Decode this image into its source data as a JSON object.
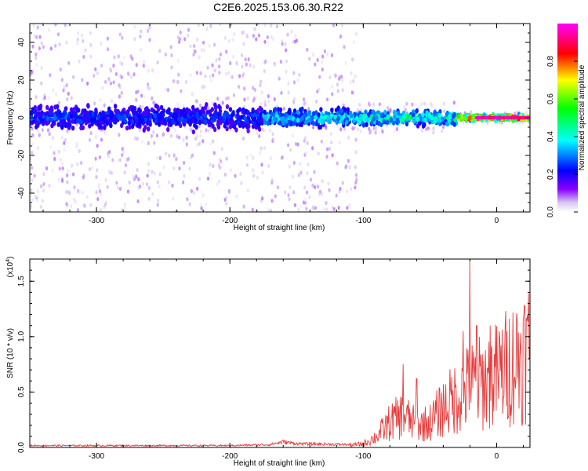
{
  "figure": {
    "title": "C2E6.2025.153.06.30.R22"
  },
  "chart_data": [
    {
      "type": "heatmap",
      "xlabel": "Height of straight line (km)",
      "ylabel": "Frequency (Hz)",
      "xlim": [
        -350,
        25
      ],
      "ylim": [
        -50,
        50
      ],
      "x_ticks": [
        -300,
        -200,
        -100,
        0
      ],
      "y_ticks": [
        -40,
        -20,
        0,
        20,
        40
      ],
      "grid": false,
      "colorbar": {
        "label": "Normalized spectral amplitude",
        "range": [
          0.0,
          1.0
        ],
        "ticks": [
          "0.0",
          "0.2",
          "0.4",
          "0.6",
          "0.8"
        ],
        "tick_values": [
          0.0,
          0.2,
          0.4,
          0.6,
          0.8
        ],
        "colormap": [
          "#ffffff",
          "#d8c8f0",
          "#8b00ff",
          "#0000ff",
          "#00ffff",
          "#00ff00",
          "#ffff00",
          "#ff0000",
          "#ff00ff"
        ]
      },
      "bands": [
        {
          "x_range": [
            -350,
            -175
          ],
          "freq_halfwidth_hz": 8,
          "scatter_halfwidth_hz": 50,
          "peak_amplitude": 0.3
        },
        {
          "x_range": [
            -175,
            -105
          ],
          "freq_halfwidth_hz": 6,
          "scatter_halfwidth_hz": 50,
          "peak_amplitude": 0.45
        },
        {
          "x_range": [
            -105,
            -30
          ],
          "freq_halfwidth_hz": 5,
          "scatter_halfwidth_hz": 8,
          "peak_amplitude": 0.55
        },
        {
          "x_range": [
            -30,
            25
          ],
          "freq_halfwidth_hz": 2,
          "scatter_halfwidth_hz": 3,
          "peak_amplitude": 1.0
        }
      ]
    },
    {
      "type": "line",
      "xlabel": "Height of straight line (km)",
      "ylabel": "SNR (10 * v/v)",
      "y_multiplier": "(x10",
      "y_multiplier_exp": "4",
      "xlim": [
        -350,
        25
      ],
      "ylim": [
        0.0,
        1.7
      ],
      "x_ticks": [
        -300,
        -200,
        -100,
        0
      ],
      "y_ticks": [
        "0.0",
        "0.5",
        "1.0",
        "1.5"
      ],
      "y_tick_values": [
        0.0,
        0.5,
        1.0,
        1.5
      ],
      "grid": false,
      "series": [
        {
          "color": "#e83a3a",
          "envelope": [
            {
              "x": -350,
              "y": 0.02
            },
            {
              "x": -200,
              "y": 0.02
            },
            {
              "x": -170,
              "y": 0.03
            },
            {
              "x": -160,
              "y": 0.06
            },
            {
              "x": -150,
              "y": 0.04
            },
            {
              "x": -110,
              "y": 0.03
            },
            {
              "x": -100,
              "y": 0.05
            },
            {
              "x": -90,
              "y": 0.15
            },
            {
              "x": -80,
              "y": 0.35
            },
            {
              "x": -70,
              "y": 0.45
            },
            {
              "x": -60,
              "y": 0.3
            },
            {
              "x": -50,
              "y": 0.35
            },
            {
              "x": -40,
              "y": 0.55
            },
            {
              "x": -30,
              "y": 0.7
            },
            {
              "x": -20,
              "y": 0.85
            },
            {
              "x": -10,
              "y": 0.9
            },
            {
              "x": 0,
              "y": 1.0
            },
            {
              "x": 10,
              "y": 1.15
            },
            {
              "x": 20,
              "y": 1.3
            },
            {
              "x": 25,
              "y": 1.38
            }
          ],
          "spikes": [
            {
              "x": -20,
              "y": 1.7
            },
            {
              "x": -70,
              "y": 0.75
            },
            {
              "x": -60,
              "y": 0.62
            },
            {
              "x": -25,
              "y": 1.05
            },
            {
              "x": -15,
              "y": 1.1
            },
            {
              "x": -5,
              "y": 1.1
            }
          ]
        }
      ]
    }
  ]
}
